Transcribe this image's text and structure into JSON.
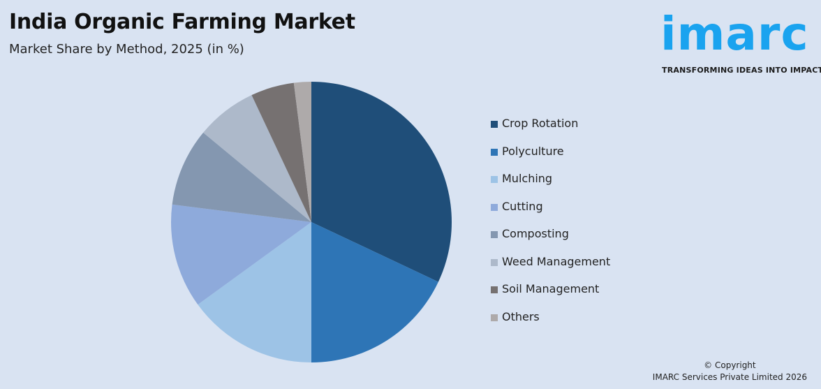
{
  "header": {
    "title": "India Organic Farming Market",
    "subtitle": "Market Share by Method, 2025 (in %)"
  },
  "logo": {
    "word": "imarc",
    "tagline": "TRANSFORMING IDEAS INTO IMPACT",
    "color": "#1aa3ef"
  },
  "legend": {
    "items": [
      {
        "label": "Crop Rotation",
        "color": "#1f4e79"
      },
      {
        "label": "Polyculture",
        "color": "#2e75b6"
      },
      {
        "label": "Mulching",
        "color": "#9dc3e6"
      },
      {
        "label": "Cutting",
        "color": "#8eaadb"
      },
      {
        "label": "Composting",
        "color": "#8497b0"
      },
      {
        "label": "Weed Management",
        "color": "#adb9ca"
      },
      {
        "label": "Soil Management",
        "color": "#767171"
      },
      {
        "label": "Others",
        "color": "#aeaaaa"
      }
    ]
  },
  "footer": {
    "copyright_line1": "© Copyright",
    "copyright_line2": "IMARC Services Private Limited 2026"
  },
  "chart_data": {
    "type": "pie",
    "title": "India Organic Farming Market",
    "subtitle": "Market Share by Method, 2025 (in %)",
    "categories": [
      "Crop Rotation",
      "Polyculture",
      "Mulching",
      "Cutting",
      "Composting",
      "Weed Management",
      "Soil Management",
      "Others"
    ],
    "values": [
      32,
      18,
      15,
      12,
      9,
      7,
      5,
      2
    ],
    "colors": [
      "#1f4e79",
      "#2e75b6",
      "#9dc3e6",
      "#8eaadb",
      "#8497b0",
      "#adb9ca",
      "#767171",
      "#aeaaaa"
    ],
    "legend_position": "right",
    "start_angle_deg": 0,
    "direction": "clockwise"
  }
}
